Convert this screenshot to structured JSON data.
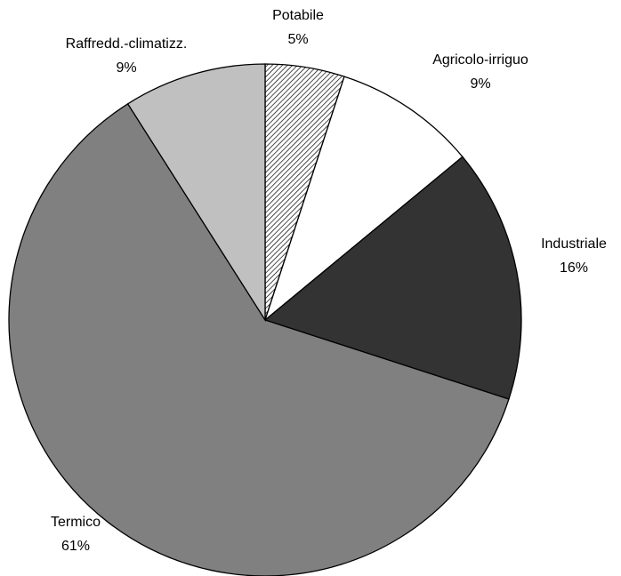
{
  "chart_data": {
    "type": "pie",
    "categories": [
      "Potabile",
      "Agricolo-irriguo",
      "Industriale",
      "Termico",
      "Raffredd.-climatizz."
    ],
    "values": [
      5,
      9,
      16,
      61,
      9
    ],
    "value_labels": [
      "5%",
      "9%",
      "16%",
      "61%",
      "9%"
    ],
    "colors": [
      "#ffffff",
      "#ffffff",
      "#333333",
      "#808080",
      "#c0c0c0"
    ],
    "patterns": [
      "diagonal",
      "solid",
      "solid",
      "solid",
      "solid"
    ]
  }
}
